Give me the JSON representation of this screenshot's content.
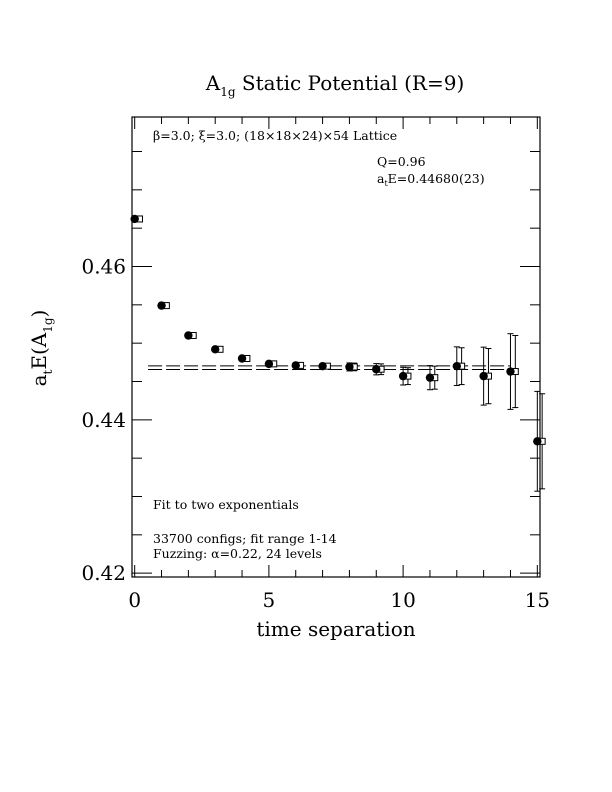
{
  "chart_data": {
    "type": "scatter",
    "title": {
      "main": "A",
      "sub": "1g",
      "rest": " Static Potential (R=9)"
    },
    "xlabel": "time separation",
    "ylabel": {
      "a": "a",
      "a_sub": "t",
      "mid": "E(A",
      "inner_sub": "1g",
      "close": ")"
    },
    "xlim": [
      -0.1,
      15.1
    ],
    "ylim": [
      0.4195,
      0.4795
    ],
    "x_ticks": [
      0,
      5,
      10,
      15
    ],
    "x_tick_labels": [
      "0",
      "5",
      "10",
      "15"
    ],
    "y_ticks": [
      0.42,
      0.44,
      0.46
    ],
    "y_tick_labels": [
      "0.42",
      "0.44",
      "0.46"
    ],
    "annotations": {
      "lattice": "β=3.0; ξ=3.0; (18×18×24)×54 Lattice",
      "q": "Q=0.96",
      "energy_a": "a",
      "energy_sub": "t",
      "energy_rest": "E=0.44680(23)",
      "fit": "Fit to two exponentials",
      "configs": "33700 configs; fit range 1-14",
      "fuzzing": "Fuzzing: α=0.22, 24 levels"
    },
    "fit_band": {
      "upper": 0.44703,
      "lower": 0.44657,
      "x_start": 0.5,
      "x_end": 14
    },
    "points": [
      {
        "x": 0,
        "y": 0.4662,
        "err": 0.0001
      },
      {
        "x": 1,
        "y": 0.4549,
        "err": 0.0001
      },
      {
        "x": 2,
        "y": 0.451,
        "err": 0.0002
      },
      {
        "x": 3,
        "y": 0.4492,
        "err": 0.0002
      },
      {
        "x": 4,
        "y": 0.448,
        "err": 0.0002
      },
      {
        "x": 5,
        "y": 0.4473,
        "err": 0.0003
      },
      {
        "x": 6,
        "y": 0.4471,
        "err": 0.0003
      },
      {
        "x": 7,
        "y": 0.447,
        "err": 0.0003
      },
      {
        "x": 8,
        "y": 0.4469,
        "err": 0.0005
      },
      {
        "x": 9,
        "y": 0.4466,
        "err": 0.0007
      },
      {
        "x": 10,
        "y": 0.4457,
        "err": 0.0011
      },
      {
        "x": 11,
        "y": 0.4455,
        "err": 0.0015
      },
      {
        "x": 12,
        "y": 0.447,
        "err": 0.0024
      },
      {
        "x": 13,
        "y": 0.4457,
        "err": 0.0036
      },
      {
        "x": 14,
        "y": 0.4463,
        "err": 0.0047
      },
      {
        "x": 15,
        "y": 0.4372,
        "err": 0.0062
      }
    ],
    "grid": false,
    "legend": "none"
  }
}
